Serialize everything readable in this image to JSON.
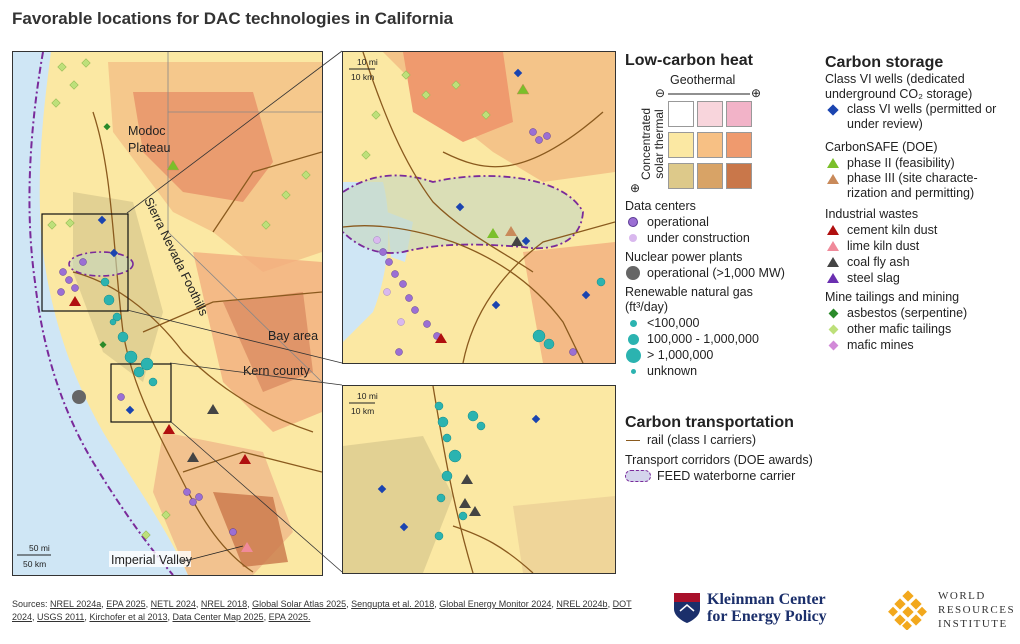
{
  "title": "Favorable locations for DAC technologies in California",
  "map_labels": {
    "modoc": "Modoc\nPlateau",
    "sierra": "Sierra Nevada Foothills",
    "bay": "Bay area",
    "kern": "Kern county",
    "imperial": "Imperial Valley"
  },
  "scalebars": {
    "main_mi": "50 mi",
    "main_km": "50 km",
    "inset_mi": "10 mi",
    "inset_km": "10 km"
  },
  "legend": {
    "heat_title": "Low-carbon heat",
    "geothermal": "Geothermal",
    "solar": "Concentrated solar thermal",
    "minus": "⊖",
    "plus": "⊕",
    "heat_colors": [
      "#ffffff",
      "#f8d5dc",
      "#f2b3c8",
      "#fbe8a3",
      "#f7c084",
      "#ef9a6e",
      "#ddc98a",
      "#d8a366",
      "#c9774a"
    ],
    "datacenters_title": "Data centers",
    "dc_operational": "operational",
    "dc_construction": "under construction",
    "nuclear_title": "Nuclear power plants",
    "nuclear_operational": "operational (>1,000 MW)",
    "rng_title": "Renewable natural gas",
    "rng_unit": "(ft³/day)",
    "rng_small": "<100,000",
    "rng_mid": "100,000 - 1,000,000",
    "rng_large": "> 1,000,000",
    "rng_unknown": "unknown",
    "storage_title": "Carbon storage",
    "classvi_title": "Class VI wells (dedicated underground CO₂ storage)",
    "classvi_item": "class VI wells (permitted or under review)",
    "carbonsafe_title": "CarbonSAFE (DOE)",
    "phase2": "phase II (feasibility)",
    "phase3": "phase III (site characte-rization and permitting)",
    "industrial_title": "Industrial wastes",
    "cement": "cement kiln dust",
    "lime": "lime kiln dust",
    "coal": "coal fly ash",
    "steel": "steel slag",
    "mine_title": "Mine tailings and mining",
    "asbestos": "asbestos (serpentine)",
    "mafic_tailings": "other mafic tailings",
    "mafic_mines": "mafic mines",
    "transport_title": "Carbon transportation",
    "rail": "rail (class I carriers)",
    "corridors_title": "Transport corridors (DOE awards)",
    "feed": "FEED waterborne carrier"
  },
  "colors": {
    "datacenter_op": "#9b6fd4",
    "datacenter_uc": "#d9b8ee",
    "nuclear": "#666666",
    "rng": "#2bb3b0",
    "classvi": "#1a44b0",
    "phase2": "#7bbf2a",
    "phase3": "#c98a5a",
    "cement": "#b00f0f",
    "lime": "#f08a9a",
    "coal": "#444444",
    "steel": "#6a2fb0",
    "asbestos": "#2a8a2a",
    "mafic_tailings": "#bde07a",
    "mafic_mines": "#d28ad8",
    "rail": "#8a5a1e",
    "corridor": "#7a2a9a",
    "water": "#cfe6f5"
  },
  "sources": {
    "label": "Sources:",
    "items": [
      "NREL 2024a",
      "EPA 2025",
      "NETL 2024",
      "NREL 2018",
      "Global Solar Atlas 2025",
      "Sengupta et al. 2018",
      "Global Energy Monitor 2024",
      "NREL 2024b",
      "DOT 2024",
      "USGS 2011",
      "Kirchofer et al 2013",
      "Data Center Map 2025",
      "EPA 2025."
    ]
  },
  "logos": {
    "kleinman_line1": "Kleinman Center",
    "kleinman_line2": "for Energy Policy",
    "wri_line1": "WORLD",
    "wri_line2": "RESOURCES",
    "wri_line3": "INSTITUTE"
  }
}
